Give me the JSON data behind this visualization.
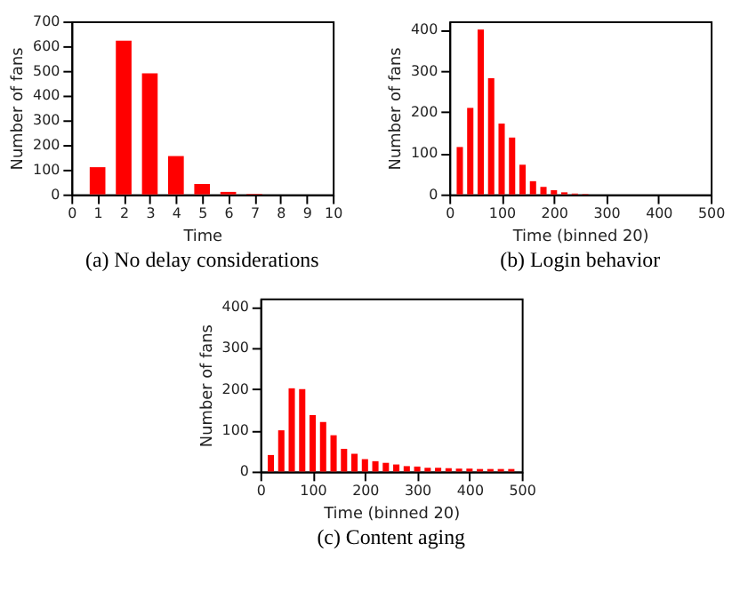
{
  "chart_data": [
    {
      "type": "bar",
      "title": "(a) No delay considerations",
      "xlabel": "Time",
      "ylabel": "Number of fans",
      "color": "#ff0000",
      "x": [
        1,
        2,
        3,
        4,
        5,
        6,
        7
      ],
      "values": [
        110,
        622,
        490,
        155,
        42,
        10,
        2
      ],
      "xlim": [
        0,
        10
      ],
      "xticks": [
        0,
        1,
        2,
        3,
        4,
        5,
        6,
        7,
        8,
        9,
        10
      ],
      "ylim": [
        0,
        700
      ],
      "yticks": [
        0,
        100,
        200,
        300,
        400,
        500,
        600,
        700
      ],
      "grid": false
    },
    {
      "type": "bar",
      "title": "(b) Login behavior",
      "xlabel": "Time (binned 20)",
      "ylabel": "Number of fans",
      "color": "#ff0000",
      "x": [
        20,
        40,
        60,
        80,
        100,
        120,
        140,
        160,
        180,
        200,
        220,
        240,
        260
      ],
      "values": [
        115,
        210,
        400,
        282,
        172,
        138,
        72,
        32,
        18,
        10,
        5,
        2,
        1
      ],
      "xlim": [
        0,
        500
      ],
      "xticks": [
        0,
        100,
        200,
        300,
        400,
        500
      ],
      "ylim": [
        0,
        420
      ],
      "yticks": [
        0,
        100,
        200,
        300,
        400
      ],
      "grid": false
    },
    {
      "type": "bar",
      "title": "(c) Content aging",
      "xlabel": "Time (binned 20)",
      "ylabel": "Number of fans",
      "color": "#ff0000",
      "x": [
        20,
        40,
        60,
        80,
        100,
        120,
        140,
        160,
        180,
        200,
        220,
        240,
        260,
        280,
        300,
        320,
        340,
        360,
        380,
        400,
        420,
        440,
        460,
        480
      ],
      "values": [
        40,
        100,
        202,
        200,
        137,
        120,
        88,
        55,
        43,
        30,
        25,
        21,
        17,
        13,
        12,
        9,
        9,
        8,
        7,
        7,
        6,
        6,
        6,
        6
      ],
      "xlim": [
        0,
        500
      ],
      "xticks": [
        0,
        100,
        200,
        300,
        400,
        500
      ],
      "ylim": [
        0,
        420
      ],
      "yticks": [
        0,
        100,
        200,
        300,
        400
      ],
      "grid": false
    }
  ]
}
